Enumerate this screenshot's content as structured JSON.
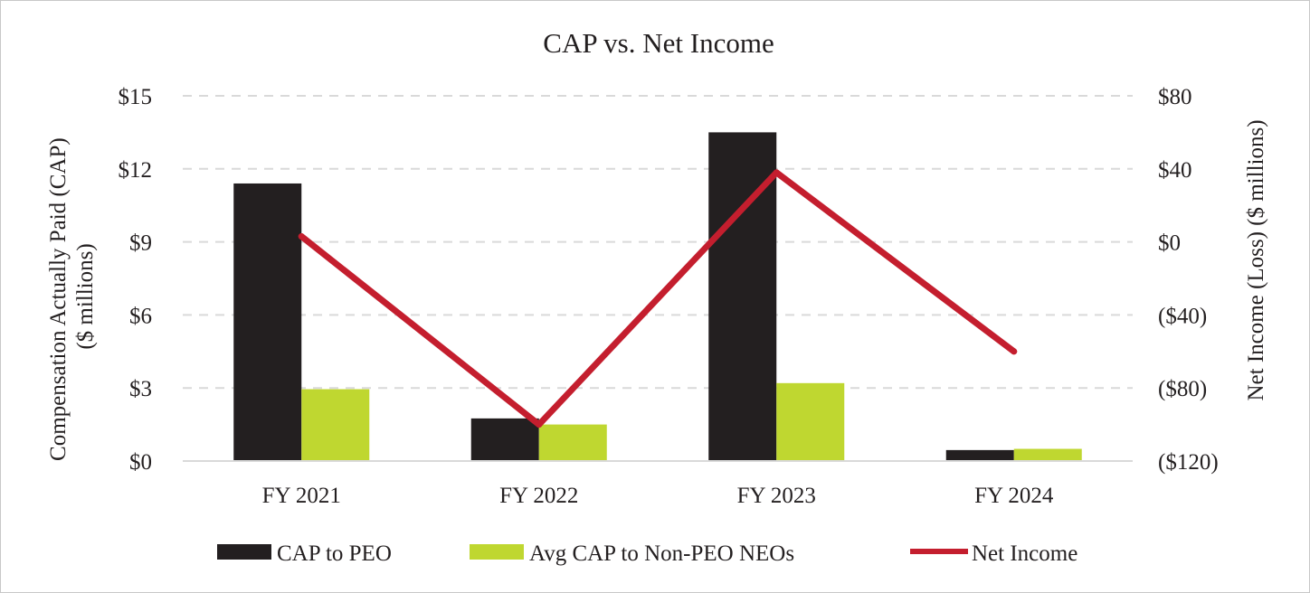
{
  "chart_data": {
    "type": "bar",
    "title": "CAP vs. Net Income",
    "categories": [
      "FY 2021",
      "FY 2022",
      "FY 2023",
      "FY 2024"
    ],
    "ylabel": [
      "Compensation Actually Paid (CAP)",
      "($ millions)"
    ],
    "y2label": "Net Income (Loss) ($ millions)",
    "ylim": [
      0,
      15
    ],
    "y2lim": [
      -120,
      80
    ],
    "yticks": [
      0,
      3,
      6,
      9,
      12,
      15
    ],
    "ytick_labels": [
      "$0",
      "$3",
      "$6",
      "$9",
      "$12",
      "$15"
    ],
    "y2ticks": [
      -120,
      -80,
      -40,
      0,
      40,
      80
    ],
    "y2tick_labels": [
      "($120)",
      "($80)",
      "($40)",
      "$0",
      "$40",
      "$80"
    ],
    "grid": "horizontal dashed",
    "legend_position": "bottom",
    "series": [
      {
        "name": "CAP to PEO",
        "kind": "bar",
        "axis": "left",
        "color": "#231f20",
        "values": [
          11.4,
          1.75,
          13.5,
          0.45
        ]
      },
      {
        "name": "Avg CAP to Non-PEO NEOs",
        "kind": "bar",
        "axis": "left",
        "color": "#bfd730",
        "values": [
          2.95,
          1.5,
          3.2,
          0.5
        ]
      },
      {
        "name": "Net Income",
        "kind": "line",
        "axis": "right",
        "color": "#c41e2e",
        "values": [
          3,
          -100,
          38,
          -60
        ]
      }
    ]
  }
}
